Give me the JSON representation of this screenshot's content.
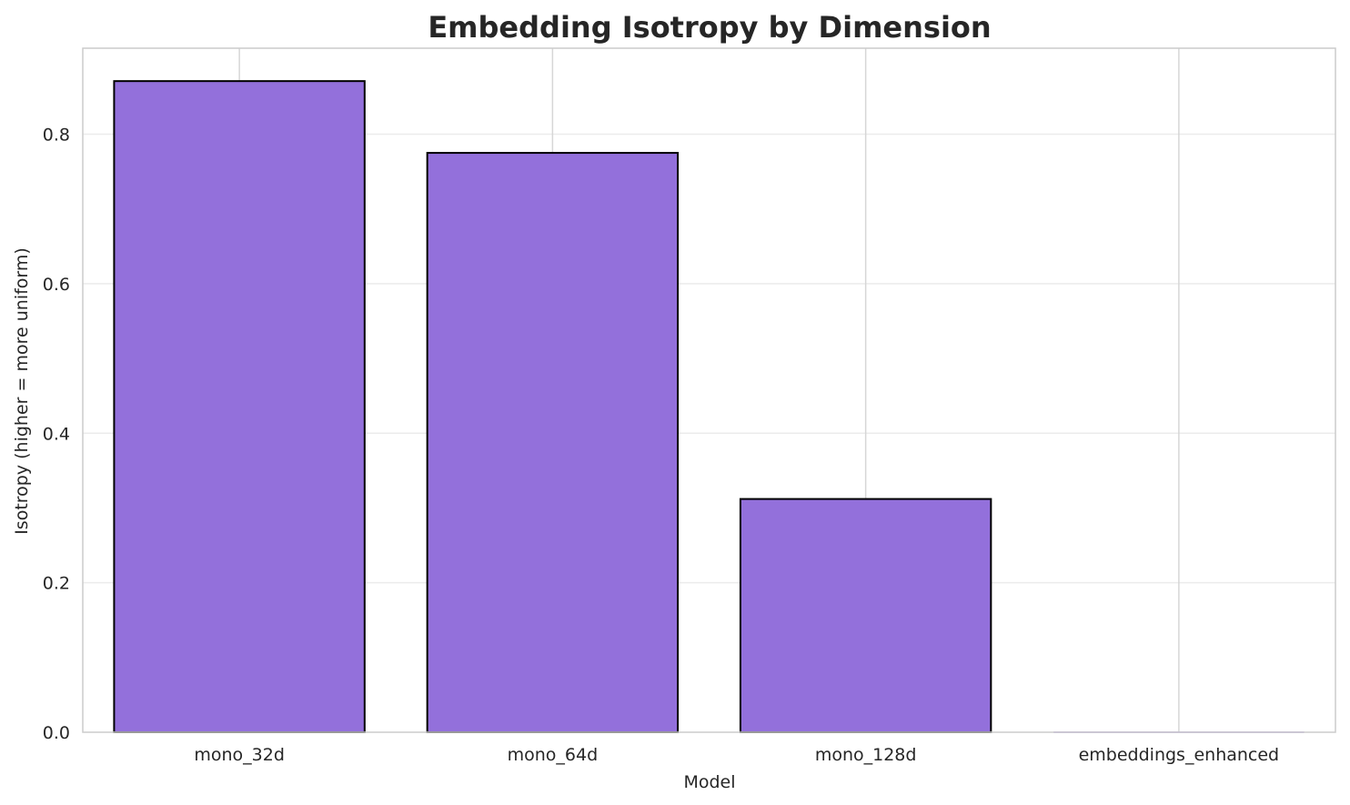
{
  "chart_data": {
    "type": "bar",
    "title": "Embedding Isotropy by Dimension",
    "xlabel": "Model",
    "ylabel": "Isotropy (higher = more uniform)",
    "categories": [
      "mono_32d",
      "mono_64d",
      "mono_128d",
      "embeddings_enhanced"
    ],
    "values": [
      0.871,
      0.775,
      0.312,
      0.0
    ],
    "ylim": [
      0,
      0.915
    ],
    "yticks": [
      0.0,
      0.2,
      0.4,
      0.6,
      0.8
    ],
    "ytick_labels": [
      "0.0",
      "0.2",
      "0.4",
      "0.6",
      "0.8"
    ],
    "grid": true,
    "legend": "none",
    "colors": {
      "bar_fill": "#9370db",
      "bar_edge": "#000000",
      "grid": "#ebebeb",
      "vgrid": "#d6d6d6",
      "frame": "#cccccc"
    }
  }
}
